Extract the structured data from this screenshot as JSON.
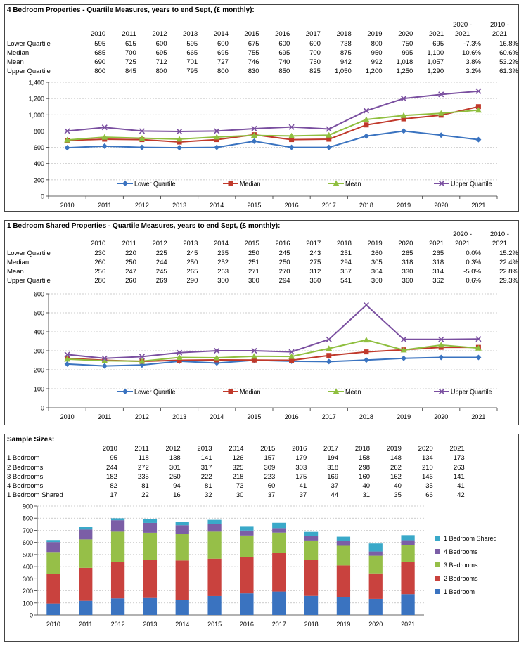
{
  "panels": [
    {
      "title": "4 Bedroom Properties - Quartile Measures, years to end Sept, (£ monthly):",
      "table": {
        "header": [
          "2010",
          "2011",
          "2012",
          "2013",
          "2014",
          "2015",
          "2016",
          "2017",
          "2018",
          "2019",
          "2020",
          "2021"
        ],
        "change_headers": [
          [
            "2020 -",
            "2021"
          ],
          [
            "2010 -",
            "2021"
          ]
        ],
        "rows": [
          {
            "label": "Lower Quartile",
            "values": [
              "595",
              "615",
              "600",
              "595",
              "600",
              "675",
              "600",
              "600",
              "738",
              "800",
              "750",
              "695"
            ],
            "changes": [
              "-7.3%",
              "16.8%"
            ]
          },
          {
            "label": "Median",
            "values": [
              "685",
              "700",
              "695",
              "665",
              "695",
              "755",
              "695",
              "700",
              "875",
              "950",
              "995",
              "1,100"
            ],
            "changes": [
              "10.6%",
              "60.6%"
            ]
          },
          {
            "label": "Mean",
            "values": [
              "690",
              "725",
              "712",
              "701",
              "727",
              "746",
              "740",
              "750",
              "942",
              "992",
              "1,018",
              "1,057"
            ],
            "changes": [
              "3.8%",
              "53.2%"
            ]
          },
          {
            "label": "Upper Quartile",
            "values": [
              "800",
              "845",
              "800",
              "795",
              "800",
              "830",
              "850",
              "825",
              "1,050",
              "1,200",
              "1,250",
              "1,290"
            ],
            "changes": [
              "3.2%",
              "61.3%"
            ]
          }
        ]
      },
      "chart_data": {
        "type": "line",
        "x": [
          "2010",
          "2011",
          "2012",
          "2013",
          "2014",
          "2015",
          "2016",
          "2017",
          "2018",
          "2019",
          "2020",
          "2021"
        ],
        "y_ticks": [
          "0",
          "200",
          "400",
          "600",
          "800",
          "1,000",
          "1,200",
          "1,400"
        ],
        "ylim": [
          0,
          1400
        ],
        "grid": true,
        "legend_position": "bottom-inside",
        "series": [
          {
            "name": "Lower Quartile",
            "color": "#3a73c0",
            "marker": "diamond",
            "values": [
              595,
              615,
              600,
              595,
              600,
              675,
              600,
              600,
              738,
              800,
              750,
              695
            ]
          },
          {
            "name": "Median",
            "color": "#c0392b",
            "marker": "square",
            "values": [
              685,
              700,
              695,
              665,
              695,
              755,
              695,
              700,
              875,
              950,
              995,
              1100
            ]
          },
          {
            "name": "Mean",
            "color": "#8fbf3f",
            "marker": "triangle",
            "values": [
              690,
              725,
              712,
              701,
              727,
              746,
              740,
              750,
              942,
              992,
              1018,
              1057
            ]
          },
          {
            "name": "Upper Quartile",
            "color": "#7a4fa0",
            "marker": "x",
            "values": [
              800,
              845,
              800,
              795,
              800,
              830,
              850,
              825,
              1050,
              1200,
              1250,
              1290
            ]
          }
        ]
      }
    },
    {
      "title": "1 Bedroom Shared Properties - Quartile Measures, years to end Sept, (£ monthly):",
      "table": {
        "header": [
          "2010",
          "2011",
          "2012",
          "2013",
          "2014",
          "2015",
          "2016",
          "2017",
          "2018",
          "2019",
          "2020",
          "2021"
        ],
        "change_headers": [
          [
            "2020 -",
            "2021"
          ],
          [
            "2010 -",
            "2021"
          ]
        ],
        "rows": [
          {
            "label": "Lower Quartile",
            "values": [
              "230",
              "220",
              "225",
              "245",
              "235",
              "250",
              "245",
              "243",
              "251",
              "260",
              "265",
              "265"
            ],
            "changes": [
              "0.0%",
              "15.2%"
            ]
          },
          {
            "label": "Median",
            "values": [
              "260",
              "250",
              "244",
              "250",
              "252",
              "251",
              "250",
              "275",
              "294",
              "305",
              "318",
              "318"
            ],
            "changes": [
              "0.3%",
              "22.4%"
            ]
          },
          {
            "label": "Mean",
            "values": [
              "256",
              "247",
              "245",
              "265",
              "263",
              "271",
              "270",
              "312",
              "357",
              "304",
              "330",
              "314"
            ],
            "changes": [
              "-5.0%",
              "22.8%"
            ]
          },
          {
            "label": "Upper Quartile",
            "values": [
              "280",
              "260",
              "269",
              "290",
              "300",
              "300",
              "294",
              "360",
              "541",
              "360",
              "360",
              "362"
            ],
            "changes": [
              "0.6%",
              "29.3%"
            ]
          }
        ]
      },
      "chart_data": {
        "type": "line",
        "x": [
          "2010",
          "2011",
          "2012",
          "2013",
          "2014",
          "2015",
          "2016",
          "2017",
          "2018",
          "2019",
          "2020",
          "2021"
        ],
        "y_ticks": [
          "0",
          "100",
          "200",
          "300",
          "400",
          "500",
          "600"
        ],
        "ylim": [
          0,
          600
        ],
        "grid": true,
        "legend_position": "bottom-inside",
        "series": [
          {
            "name": "Lower Quartile",
            "color": "#3a73c0",
            "marker": "diamond",
            "values": [
              230,
              220,
              225,
              245,
              235,
              250,
              245,
              243,
              251,
              260,
              265,
              265
            ]
          },
          {
            "name": "Median",
            "color": "#c0392b",
            "marker": "square",
            "values": [
              260,
              250,
              244,
              250,
              252,
              251,
              250,
              275,
              294,
              305,
              318,
              318
            ]
          },
          {
            "name": "Mean",
            "color": "#8fbf3f",
            "marker": "triangle",
            "values": [
              256,
              247,
              245,
              265,
              263,
              271,
              270,
              312,
              357,
              304,
              330,
              314
            ]
          },
          {
            "name": "Upper Quartile",
            "color": "#7a4fa0",
            "marker": "x",
            "values": [
              280,
              260,
              269,
              290,
              300,
              300,
              294,
              360,
              541,
              360,
              360,
              362
            ]
          }
        ]
      }
    }
  ],
  "samples": {
    "title": "Sample Sizes:",
    "table": {
      "header": [
        "2010",
        "2011",
        "2012",
        "2013",
        "2014",
        "2015",
        "2016",
        "2017",
        "2018",
        "2019",
        "2020",
        "2021"
      ],
      "rows": [
        {
          "label": "1 Bedroom",
          "values": [
            "95",
            "118",
            "138",
            "141",
            "126",
            "157",
            "179",
            "194",
            "158",
            "148",
            "134",
            "173"
          ]
        },
        {
          "label": "2 Bedrooms",
          "values": [
            "244",
            "272",
            "301",
            "317",
            "325",
            "309",
            "303",
            "318",
            "298",
            "262",
            "210",
            "263"
          ]
        },
        {
          "label": "3 Bedrooms",
          "values": [
            "182",
            "235",
            "250",
            "222",
            "218",
            "223",
            "175",
            "169",
            "160",
            "162",
            "146",
            "141"
          ]
        },
        {
          "label": "4 Bedrooms",
          "values": [
            "82",
            "81",
            "94",
            "81",
            "73",
            "60",
            "41",
            "37",
            "40",
            "40",
            "35",
            "41"
          ]
        },
        {
          "label": "1 Bedroom Shared",
          "values": [
            "17",
            "22",
            "16",
            "32",
            "30",
            "37",
            "37",
            "44",
            "31",
            "35",
            "66",
            "42"
          ]
        }
      ]
    },
    "chart_data": {
      "type": "bar",
      "stacked": true,
      "categories": [
        "2010",
        "2011",
        "2012",
        "2013",
        "2014",
        "2015",
        "2016",
        "2017",
        "2018",
        "2019",
        "2020",
        "2021"
      ],
      "y_ticks": [
        "0",
        "100",
        "200",
        "300",
        "400",
        "500",
        "600",
        "700",
        "800",
        "900"
      ],
      "ylim": [
        0,
        900
      ],
      "grid": true,
      "legend_position": "right",
      "series": [
        {
          "name": "1 Bedroom",
          "color": "#3a73c0",
          "values": [
            95,
            118,
            138,
            141,
            126,
            157,
            179,
            194,
            158,
            148,
            134,
            173
          ]
        },
        {
          "name": "2 Bedrooms",
          "color": "#c9423e",
          "values": [
            244,
            272,
            301,
            317,
            325,
            309,
            303,
            318,
            298,
            262,
            210,
            263
          ]
        },
        {
          "name": "3 Bedrooms",
          "color": "#96bf48",
          "values": [
            182,
            235,
            250,
            222,
            218,
            223,
            175,
            169,
            160,
            162,
            146,
            141
          ]
        },
        {
          "name": "4 Bedrooms",
          "color": "#7b5ea6",
          "values": [
            82,
            81,
            94,
            81,
            73,
            60,
            41,
            37,
            40,
            40,
            35,
            41
          ]
        },
        {
          "name": "1 Bedroom Shared",
          "color": "#3aa9c9",
          "values": [
            17,
            22,
            16,
            32,
            30,
            37,
            37,
            44,
            31,
            35,
            66,
            42
          ]
        }
      ]
    }
  }
}
